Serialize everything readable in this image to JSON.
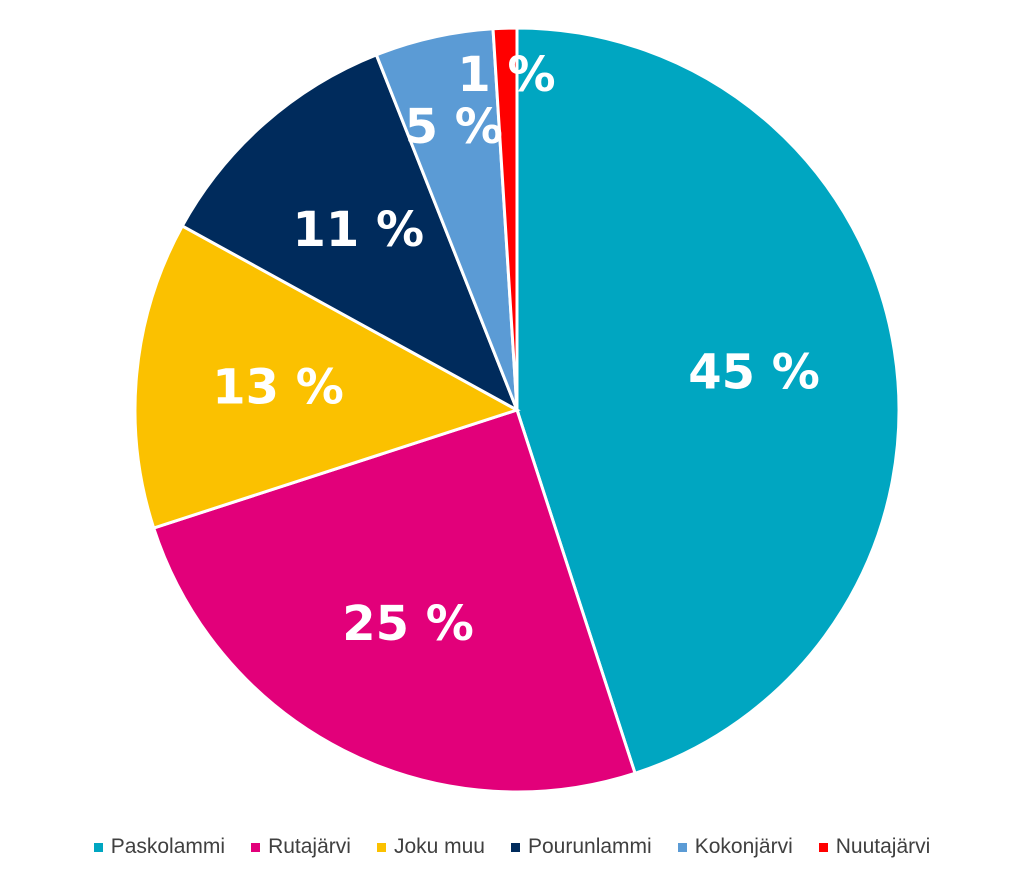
{
  "chart_data": {
    "type": "pie",
    "start_angle_deg": 0,
    "direction": "clockwise",
    "legend_position": "bottom",
    "slices": [
      {
        "name": "Paskolammi",
        "value": 45,
        "label": "45 %",
        "color": "#00A6C1"
      },
      {
        "name": "Rutajärvi",
        "value": 25,
        "label": "25 %",
        "color": "#E2007A"
      },
      {
        "name": "Joku muu",
        "value": 13,
        "label": "13 %",
        "color": "#FBC100"
      },
      {
        "name": "Pourunlammi",
        "value": 11,
        "label": "11 %",
        "color": "#002B5C"
      },
      {
        "name": "Kokonjärvi",
        "value": 5,
        "label": "5 %",
        "color": "#5B9BD5"
      },
      {
        "name": "Nuutajärvi",
        "value": 1,
        "label": "1 %",
        "color": "#FF0000"
      }
    ]
  }
}
